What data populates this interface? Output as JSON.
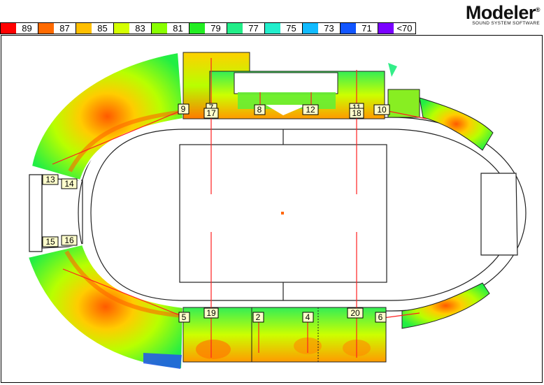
{
  "legend": [
    {
      "label": "89",
      "color": "#ff0000"
    },
    {
      "label": "87",
      "color": "#ff6a00"
    },
    {
      "label": "85",
      "color": "#ffbf00"
    },
    {
      "label": "83",
      "color": "#d4ff00"
    },
    {
      "label": "81",
      "color": "#88ff00"
    },
    {
      "label": "79",
      "color": "#22ee22"
    },
    {
      "label": "77",
      "color": "#22ee88"
    },
    {
      "label": "75",
      "color": "#22eecc"
    },
    {
      "label": "73",
      "color": "#11bbff"
    },
    {
      "label": "71",
      "color": "#1155ff"
    },
    {
      "label": "<70",
      "color": "#7a00ff"
    }
  ],
  "logo": {
    "title": "Modeler",
    "reg": "®",
    "subtitle": "SOUND SYSTEM SOFTWARE"
  },
  "speaker_labels": {
    "l2": "2",
    "l4": "4",
    "l5": "5",
    "l6": "6",
    "l7": "7",
    "l8": "8",
    "l9": "9",
    "l10": "10",
    "l11": "11",
    "l12": "12",
    "l13": "13",
    "l14": "14",
    "l15": "15",
    "l16": "16",
    "l17": "17",
    "l18": "18",
    "l19": "19",
    "l20": "20"
  }
}
